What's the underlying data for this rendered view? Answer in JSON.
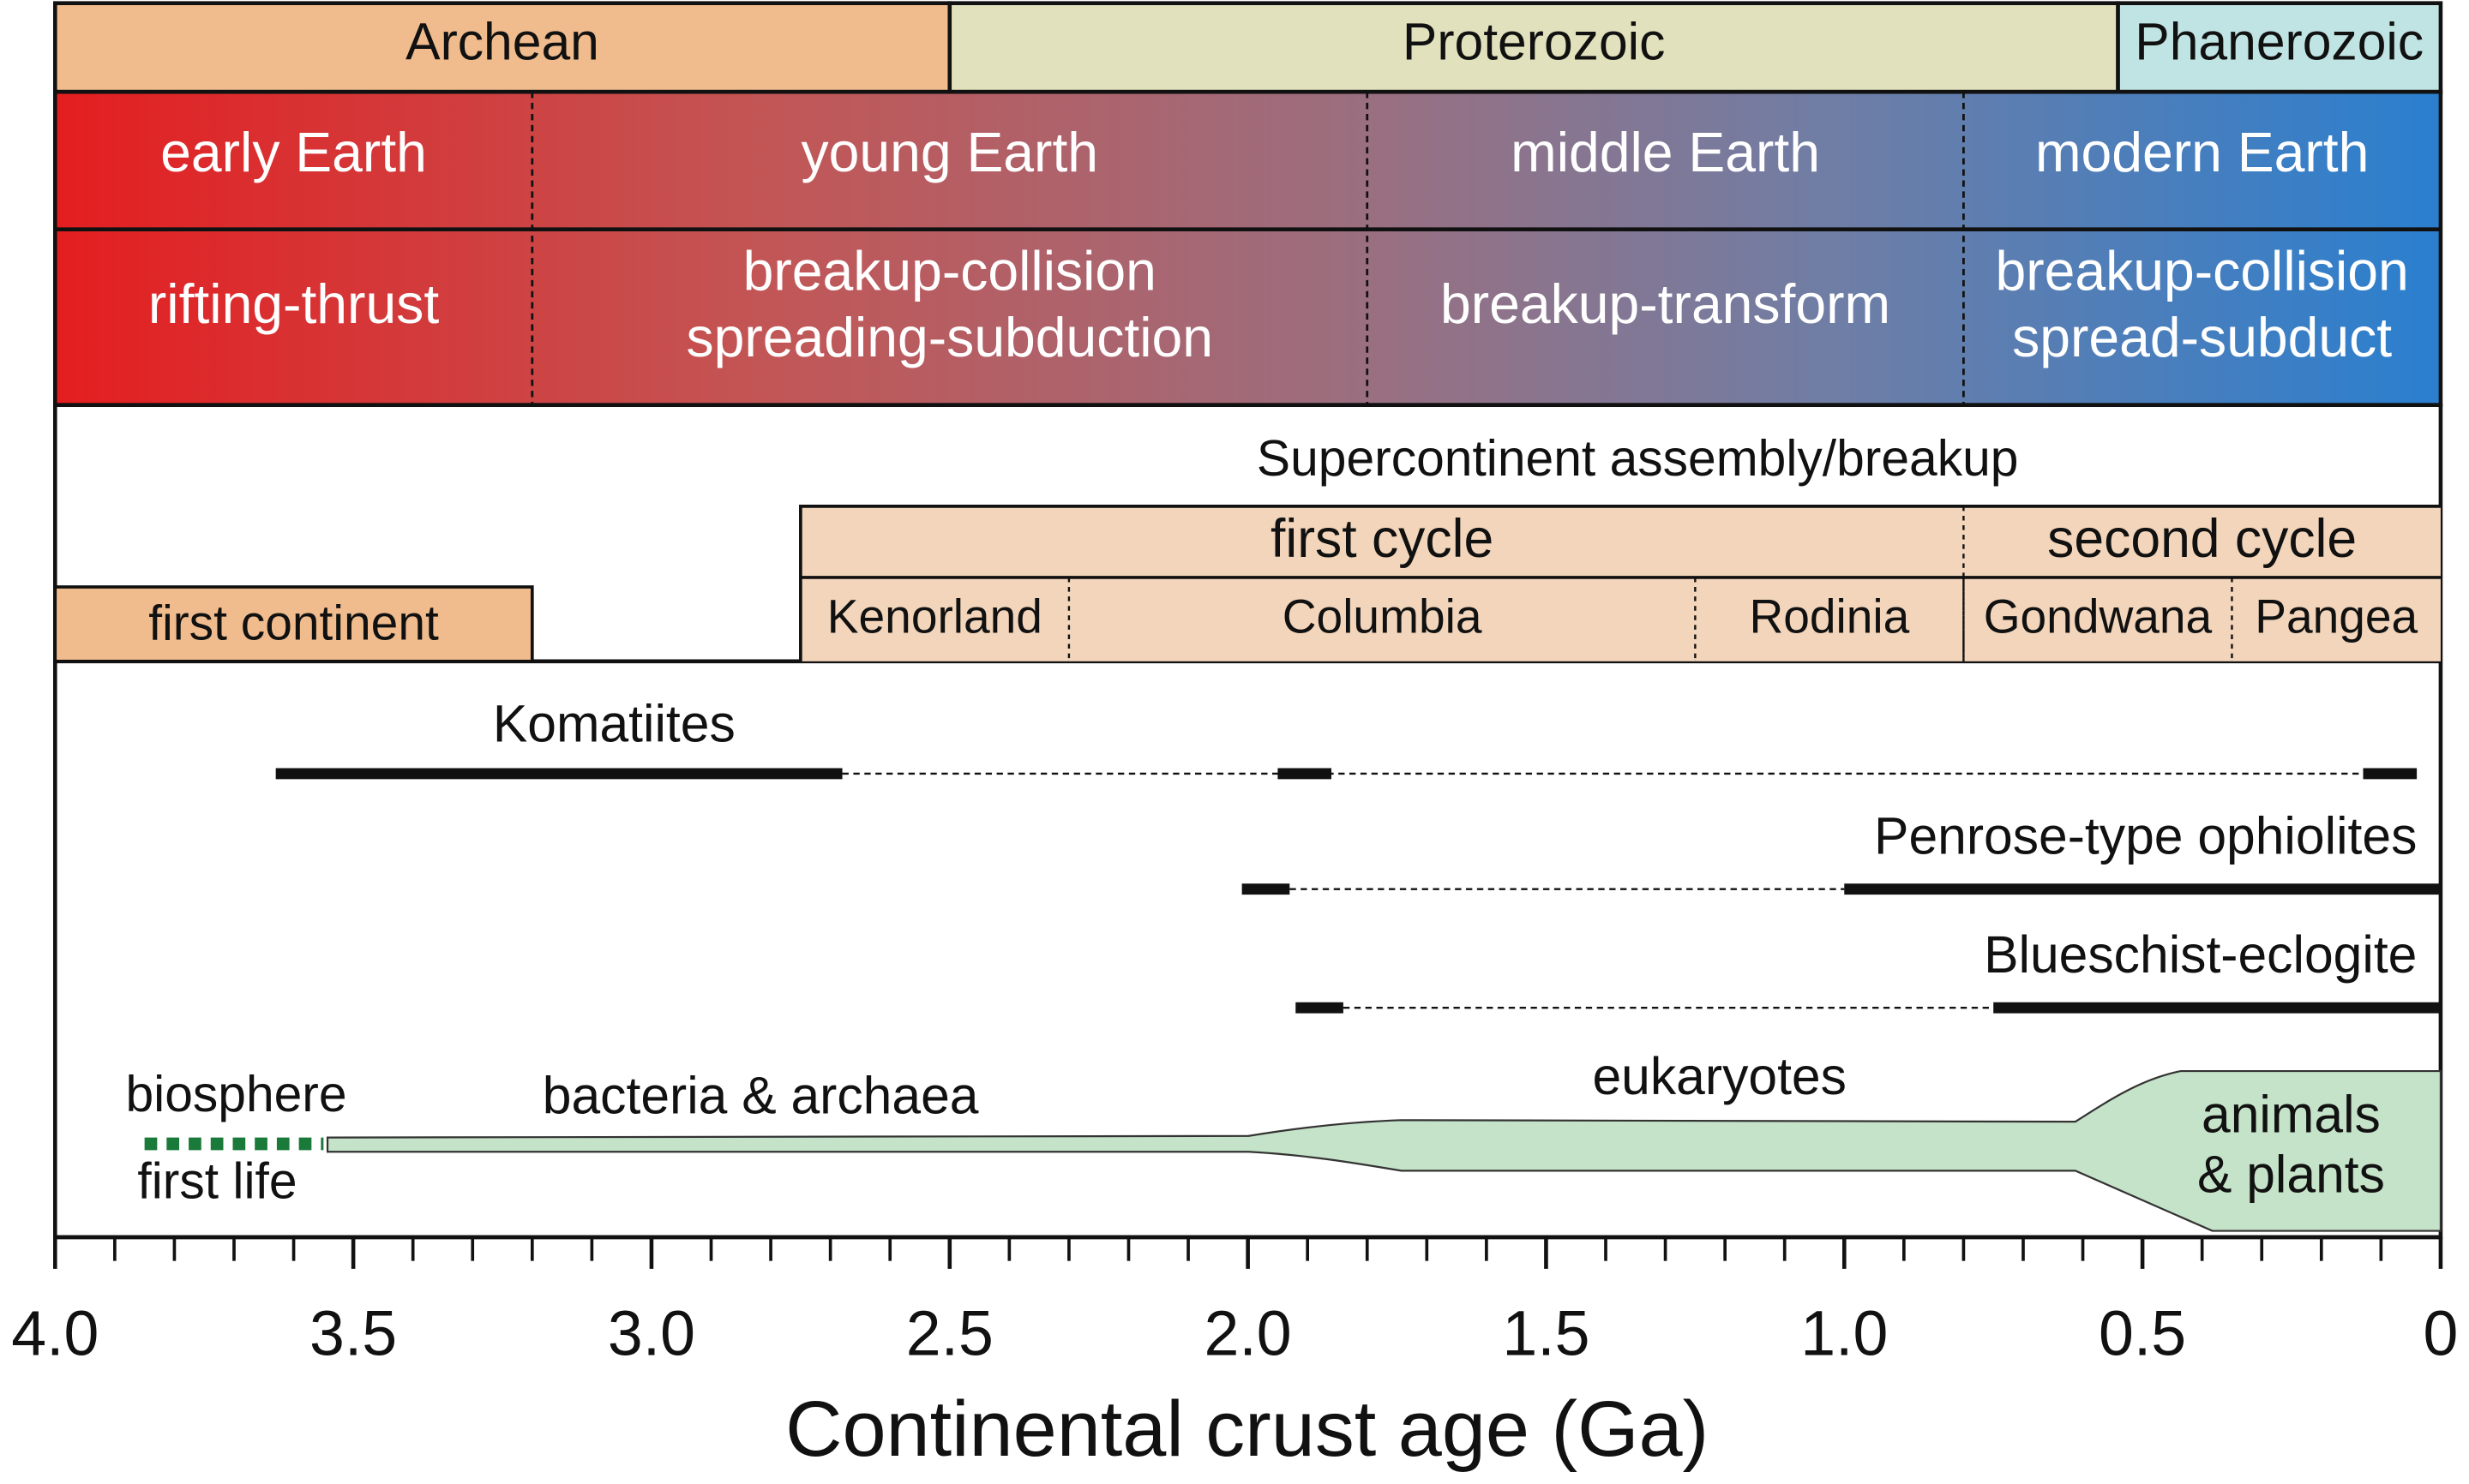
{
  "axis": {
    "title": "Continental crust age (Ga)",
    "xlim": [
      4,
      0
    ],
    "xticks": [
      {
        "value": 4,
        "label": "4.0"
      },
      3.5,
      {
        "value": 3,
        "label": "3.0"
      },
      2.5,
      {
        "value": 2,
        "label": "2.0"
      },
      1.5,
      {
        "value": 1,
        "label": "1.0"
      },
      0.5,
      0
    ],
    "minor_xticks": [
      3.9,
      3.8,
      3.7,
      3.6,
      3.4,
      3.3,
      3.2,
      3.1,
      2.9,
      2.8,
      2.7,
      2.6,
      2.4,
      2.3,
      2.2,
      2.1,
      1.9,
      1.8,
      1.7,
      1.6,
      1.4,
      1.3,
      1.2,
      1.1,
      0.9,
      0.8,
      0.7,
      0.6,
      0.4,
      0.3,
      0.2,
      0.1
    ]
  },
  "eons": [
    {
      "name": "Archean",
      "start": 4,
      "end": 2.5,
      "color": "#f0bc8e"
    },
    {
      "name": "Proterozoic",
      "start": 2.5,
      "end": 0.541,
      "color": "#e1e2bd"
    },
    {
      "name": "Phanerozoic",
      "start": 0.541,
      "end": 0,
      "color": "#c0e4e3"
    }
  ],
  "earth_stages": [
    {
      "name": "early Earth",
      "start": 4,
      "end": 3.2
    },
    {
      "name": "young Earth",
      "start": 3.2,
      "end": 1.8
    },
    {
      "name": "middle Earth",
      "start": 1.8,
      "end": 0.8
    },
    {
      "name": "modern Earth",
      "start": 0.8,
      "end": 0
    }
  ],
  "tectonics": [
    {
      "lines": [
        "rifting-thrust"
      ],
      "start": 4,
      "end": 3.2
    },
    {
      "lines": [
        "breakup-collision",
        "spreading-subduction"
      ],
      "start": 3.2,
      "end": 1.8
    },
    {
      "lines": [
        "breakup-transform"
      ],
      "start": 1.8,
      "end": 0.8
    },
    {
      "lines": [
        "breakup-collision",
        "spread-subduct"
      ],
      "start": 0.8,
      "end": 0
    }
  ],
  "supercontinent": {
    "title": "Supercontinent assembly/breakup",
    "first_continent": {
      "name": "first continent",
      "start": 4,
      "end": 3.2
    },
    "cycles": [
      {
        "name": "first cycle",
        "start": 2.75,
        "end": 0.8
      },
      {
        "name": "second cycle",
        "start": 0.8,
        "end": 0
      }
    ],
    "supercontinents": [
      {
        "name": "Kenorland",
        "start": 2.75,
        "end": 2.3
      },
      {
        "name": "Columbia",
        "start": 2.3,
        "end": 1.25
      },
      {
        "name": "Rodinia",
        "start": 1.25,
        "end": 0.8
      },
      {
        "name": "Gondwana",
        "start": 0.8,
        "end": 0.35
      },
      {
        "name": "Pangea",
        "start": 0.35,
        "end": 0
      }
    ]
  },
  "rocks": [
    {
      "name": "Komatiites",
      "solid": [
        [
          3.63,
          2.68
        ],
        [
          1.95,
          1.86
        ],
        [
          0.13,
          0.04
        ]
      ],
      "dashed": [
        2.68,
        0.13
      ]
    },
    {
      "name": "Penrose-type ophiolites",
      "solid": [
        [
          2.01,
          1.93
        ],
        [
          1,
          0
        ]
      ],
      "dashed": [
        1.93,
        1
      ]
    },
    {
      "name": "Blueschist-eclogite",
      "solid": [
        [
          1.92,
          1.84
        ],
        [
          0.75,
          0
        ]
      ],
      "dashed": [
        1.84,
        0.75
      ]
    }
  ],
  "life": {
    "biosphere": "biosphere",
    "first_life": "first life",
    "first_life_range": [
      3.85,
      3.55
    ],
    "phases": [
      {
        "lines": [
          "bacteria & archaea"
        ]
      },
      {
        "lines": [
          "eukaryotes"
        ]
      },
      {
        "lines": [
          "animals",
          "& plants"
        ]
      }
    ]
  }
}
